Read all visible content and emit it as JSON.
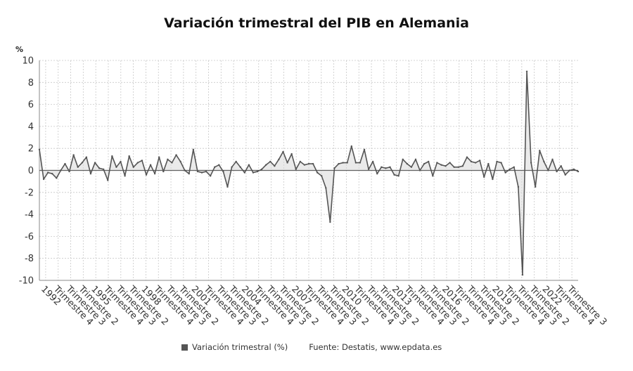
{
  "chart_data": {
    "type": "line",
    "title": "Variación trimestral del PIB en Alemania",
    "ylabel": "%",
    "ylim": [
      -10,
      10
    ],
    "yticks": [
      10,
      8,
      6,
      4,
      2,
      0,
      -2,
      -4,
      -6,
      -8,
      -10
    ],
    "grid": true,
    "x_tick_labels": [
      "1992",
      "Trimestre 4",
      "Trimestre 3",
      "Trimestre 2",
      "1995",
      "Trimestre 4",
      "Trimestre 3",
      "Trimestre 2",
      "1998",
      "Trimestre 4",
      "Trimestre 3",
      "Trimestre 2",
      "2001",
      "Trimestre 4",
      "Trimestre 3",
      "Trimestre 2",
      "2004",
      "Trimestre 4",
      "Trimestre 3",
      "Trimestre 2",
      "2007",
      "Trimestre 4",
      "Trimestre 3",
      "Trimestre 2",
      "2010",
      "Trimestre 4",
      "Trimestre 3",
      "Trimestre 2",
      "2013",
      "Trimestre 4",
      "Trimestre 3",
      "Trimestre 2",
      "2016",
      "Trimestre 4",
      "Trimestre 3",
      "Trimestre 2",
      "2019",
      "Trimestre 4",
      "Trimestre 3",
      "Trimestre 2",
      "2022",
      "Trimestre 4",
      "Trimestre 3"
    ],
    "series": [
      {
        "name": "Variación trimestral (%)",
        "color": "#555555",
        "values": [
          1.9,
          -0.8,
          -0.2,
          -0.3,
          -0.7,
          0.0,
          0.6,
          -0.1,
          1.4,
          0.3,
          0.7,
          1.2,
          -0.3,
          0.7,
          0.2,
          0.1,
          -0.9,
          1.3,
          0.3,
          0.8,
          -0.5,
          1.3,
          0.3,
          0.7,
          0.9,
          -0.4,
          0.5,
          -0.3,
          1.2,
          -0.1,
          1.0,
          0.7,
          1.4,
          0.8,
          0.0,
          -0.3,
          1.9,
          -0.1,
          -0.2,
          -0.1,
          -0.5,
          0.3,
          0.5,
          -0.1,
          -1.5,
          0.3,
          0.8,
          0.3,
          -0.2,
          0.5,
          -0.2,
          -0.1,
          0.1,
          0.5,
          0.8,
          0.4,
          1.0,
          1.7,
          0.7,
          1.5,
          0.1,
          0.8,
          0.5,
          0.6,
          0.6,
          -0.2,
          -0.5,
          -1.6,
          -4.7,
          0.2,
          0.6,
          0.7,
          0.7,
          2.2,
          0.7,
          0.7,
          1.9,
          0.1,
          0.8,
          -0.3,
          0.3,
          0.2,
          0.3,
          -0.4,
          -0.5,
          1.0,
          0.6,
          0.3,
          1.0,
          0.0,
          0.6,
          0.8,
          -0.5,
          0.7,
          0.5,
          0.4,
          0.7,
          0.3,
          0.3,
          0.4,
          1.2,
          0.8,
          0.7,
          0.9,
          -0.6,
          0.6,
          -0.8,
          0.8,
          0.7,
          -0.2,
          0.1,
          0.3,
          -1.5,
          -9.5,
          9.0,
          0.7,
          -1.5,
          1.8,
          0.8,
          0.0,
          1.0,
          -0.1,
          0.4,
          -0.4,
          0.0,
          0.1,
          -0.1
        ]
      }
    ],
    "legend": "bottom",
    "source": "Fuente: Destatis, www.epdata.es"
  }
}
